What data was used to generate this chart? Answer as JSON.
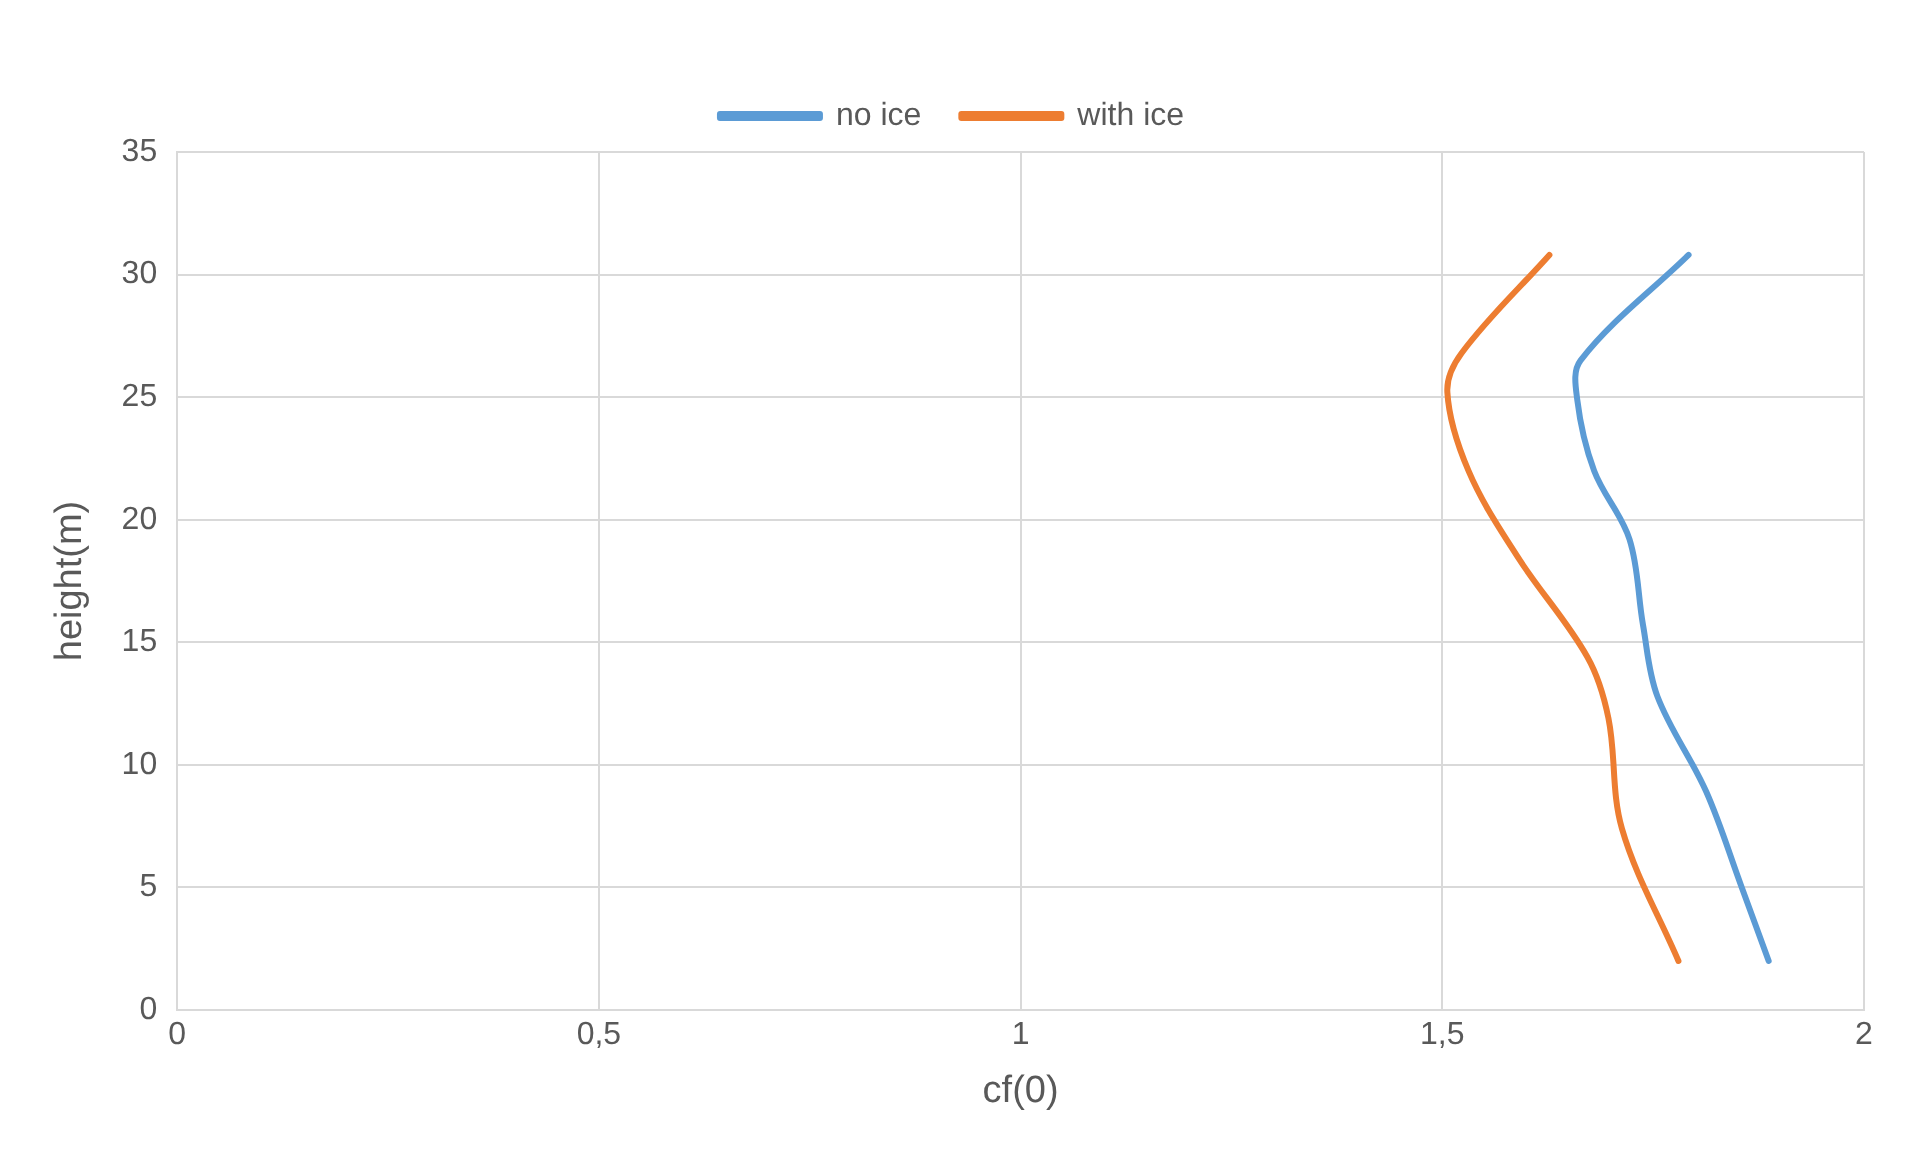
{
  "chart_data": {
    "type": "line",
    "xlabel": "cf(0)",
    "ylabel": "height(m)",
    "xlim": [
      0,
      2
    ],
    "ylim": [
      0,
      35
    ],
    "xticks": [
      0,
      {
        "value": 0.5,
        "label": "0,5"
      },
      1,
      {
        "value": 1.5,
        "label": "1,5"
      },
      2
    ],
    "yticks": [
      0,
      5,
      10,
      15,
      20,
      25,
      30,
      35
    ],
    "grid": true,
    "legend": "top",
    "marker": "none",
    "line_style": "solid",
    "series": [
      {
        "name": "no ice",
        "color": "#5b9bd5",
        "x": [
          1.887,
          1.854,
          1.813,
          1.755,
          1.738,
          1.722,
          1.68,
          1.66,
          1.664,
          1.792
        ],
        "values": [
          2,
          5.1,
          8.9,
          12.8,
          15.7,
          19.2,
          22,
          24.9,
          26.5,
          30.8
        ]
      },
      {
        "name": "with ice",
        "color": "#ed7d31",
        "x": [
          1.78,
          1.713,
          1.697,
          1.672,
          1.589,
          1.531,
          1.506,
          1.523,
          1.627
        ],
        "values": [
          2,
          7.4,
          11.9,
          14.4,
          18.5,
          22,
          25.2,
          26.8,
          30.8
        ]
      }
    ]
  }
}
